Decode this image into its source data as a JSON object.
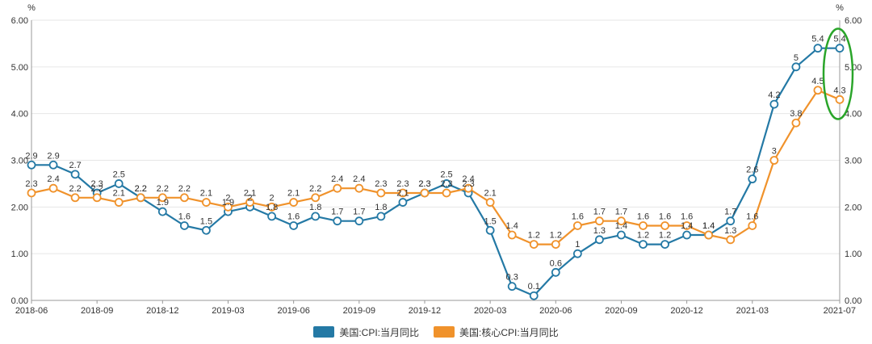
{
  "chart_data": {
    "type": "line",
    "y_unit_left": "%",
    "y_unit_right": "%",
    "ylim": [
      0,
      6
    ],
    "yticks": [
      "0.00",
      "1.00",
      "2.00",
      "3.00",
      "4.00",
      "5.00",
      "6.00"
    ],
    "x_tick_labels": [
      "2018-06",
      "2018-09",
      "2018-12",
      "2019-03",
      "2019-06",
      "2019-09",
      "2019-12",
      "2020-03",
      "2020-06",
      "2020-09",
      "2020-12",
      "2021-03",
      "2021-07"
    ],
    "x": [
      "2018-06",
      "2018-07",
      "2018-08",
      "2018-09",
      "2018-10",
      "2018-11",
      "2018-12",
      "2019-01",
      "2019-02",
      "2019-03",
      "2019-04",
      "2019-05",
      "2019-06",
      "2019-07",
      "2019-08",
      "2019-09",
      "2019-10",
      "2019-11",
      "2019-12",
      "2020-01",
      "2020-02",
      "2020-03",
      "2020-04",
      "2020-05",
      "2020-06",
      "2020-07",
      "2020-08",
      "2020-09",
      "2020-10",
      "2020-11",
      "2020-12",
      "2021-01",
      "2021-02",
      "2021-03",
      "2021-04",
      "2021-05",
      "2021-06",
      "2021-07"
    ],
    "series": [
      {
        "name": "美国:CPI:当月同比",
        "color": "#2479a5",
        "values": [
          2.9,
          2.9,
          2.7,
          2.3,
          2.5,
          2.2,
          1.9,
          1.6,
          1.5,
          1.9,
          2.0,
          1.8,
          1.6,
          1.8,
          1.7,
          1.7,
          1.8,
          2.1,
          2.3,
          2.5,
          2.3,
          1.5,
          0.3,
          0.1,
          0.6,
          1.0,
          1.3,
          1.4,
          1.2,
          1.2,
          1.4,
          1.4,
          1.7,
          2.6,
          4.2,
          5.0,
          5.4,
          5.4
        ],
        "labels": [
          "2.9",
          "2.9",
          "2.7",
          "2.3",
          "2.5",
          "2.2",
          "1.9",
          "1.6",
          "1.5",
          "1.9",
          "2",
          "1.8",
          "1.6",
          "1.8",
          "1.7",
          "1.7",
          "1.8",
          "2.1",
          "2.3",
          "2.5",
          "2.3",
          "1.5",
          "0.3",
          "0.1",
          "0.6",
          "1",
          "1.3",
          "1.4",
          "1.2",
          "1.2",
          "1.4",
          "1.4",
          "1.7",
          "2.6",
          "4.2",
          "5",
          "5.4",
          "5.4"
        ]
      },
      {
        "name": "美国:核心CPI:当月同比",
        "color": "#f0922b",
        "values": [
          2.3,
          2.4,
          2.2,
          2.2,
          2.1,
          2.2,
          2.2,
          2.2,
          2.1,
          2.0,
          2.1,
          2.0,
          2.1,
          2.2,
          2.4,
          2.4,
          2.3,
          2.3,
          2.3,
          2.3,
          2.4,
          2.1,
          1.4,
          1.2,
          1.2,
          1.6,
          1.7,
          1.7,
          1.6,
          1.6,
          1.6,
          1.4,
          1.3,
          1.6,
          3.0,
          3.8,
          4.5,
          4.3
        ],
        "labels": [
          "2.3",
          "2.4",
          "2.2",
          "2.2",
          "2.1",
          "2.2",
          "2.2",
          "2.2",
          "2.1",
          "2",
          "2.1",
          "2",
          "2.1",
          "2.2",
          "2.4",
          "2.4",
          "2.3",
          "2.3",
          "2.3",
          "2.3",
          "2.4",
          "2.1",
          "1.4",
          "1.2",
          "1.2",
          "1.6",
          "1.7",
          "1.7",
          "1.6",
          "1.6",
          "1.6",
          "1.4",
          "1.3",
          "1.6",
          "3",
          "3.8",
          "4.5",
          "4.3"
        ]
      }
    ],
    "grid": true,
    "legend_position": "bottom-center",
    "highlight_color": "#2aa52a"
  }
}
